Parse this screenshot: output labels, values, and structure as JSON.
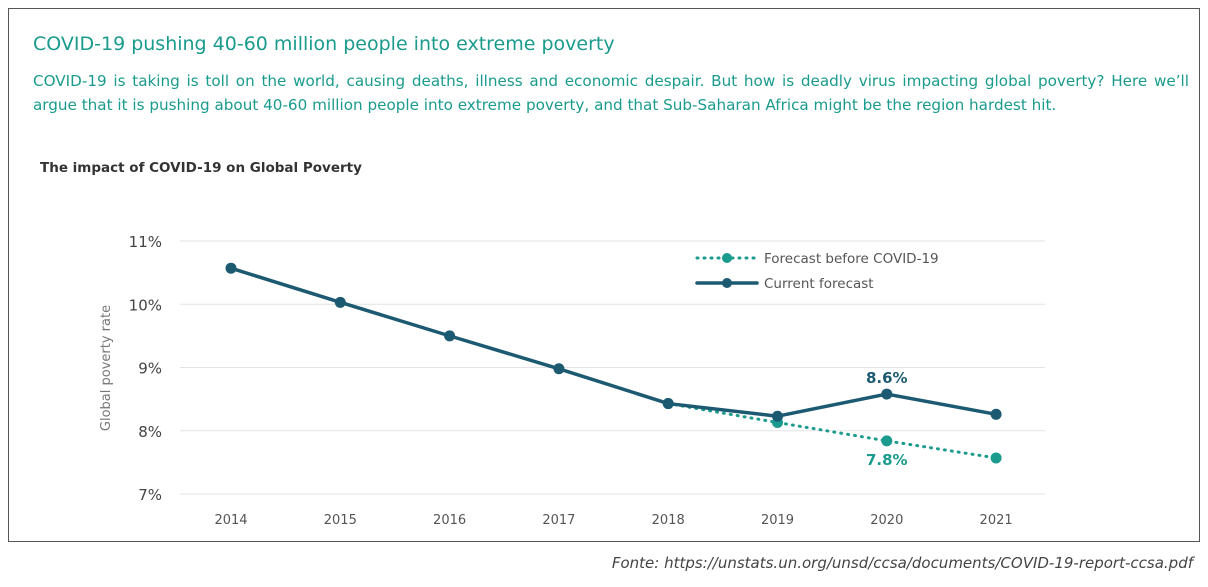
{
  "article": {
    "heading": "COVID-19 pushing 40-60 million people into extreme poverty",
    "intro": "COVID-19 is taking is toll on the world, causing deaths, illness and economic despair. But how is deadly virus impacting global poverty? Here we’ll argue that it is pushing about 40-60 million people into extreme poverty, and that Sub-Saharan Africa might be the region hardest hit.",
    "source": "Fonte: https://unstats.un.org/unsd/ccsa/documents/COVID-19-report-ccsa.pdf"
  },
  "chart_data": {
    "type": "line",
    "title": "The impact of COVID-19 on Global Poverty",
    "ylabel": "Global poverty rate",
    "xlabel": "",
    "x": [
      "2014",
      "2015",
      "2016",
      "2017",
      "2018",
      "2019",
      "2020",
      "2021"
    ],
    "ylim": [
      7,
      11
    ],
    "yticks": [
      7,
      8,
      9,
      10,
      11
    ],
    "ytick_labels": [
      "7%",
      "8%",
      "9%",
      "10%",
      "11%"
    ],
    "grid": true,
    "legend_position": "top-right",
    "series": [
      {
        "name": "Forecast before COVID-19",
        "style": "dotted",
        "color": "#1a9b8d",
        "x": [
          "2018",
          "2019",
          "2020",
          "2021"
        ],
        "values": [
          8.43,
          8.13,
          7.84,
          7.57
        ]
      },
      {
        "name": "Current forecast",
        "style": "solid",
        "color": "#1c5a72",
        "x": [
          "2014",
          "2015",
          "2016",
          "2017",
          "2018",
          "2019",
          "2020",
          "2021"
        ],
        "values": [
          10.57,
          10.03,
          9.5,
          8.98,
          8.43,
          8.23,
          8.58,
          8.26
        ]
      }
    ],
    "annotations": [
      {
        "text": "8.6%",
        "x": "2020",
        "y": 8.58,
        "series": "Current forecast",
        "placement": "above",
        "color": "#1c5a72"
      },
      {
        "text": "7.8%",
        "x": "2020",
        "y": 7.84,
        "series": "Forecast before COVID-19",
        "placement": "below",
        "color": "#1a9b8d"
      }
    ]
  }
}
